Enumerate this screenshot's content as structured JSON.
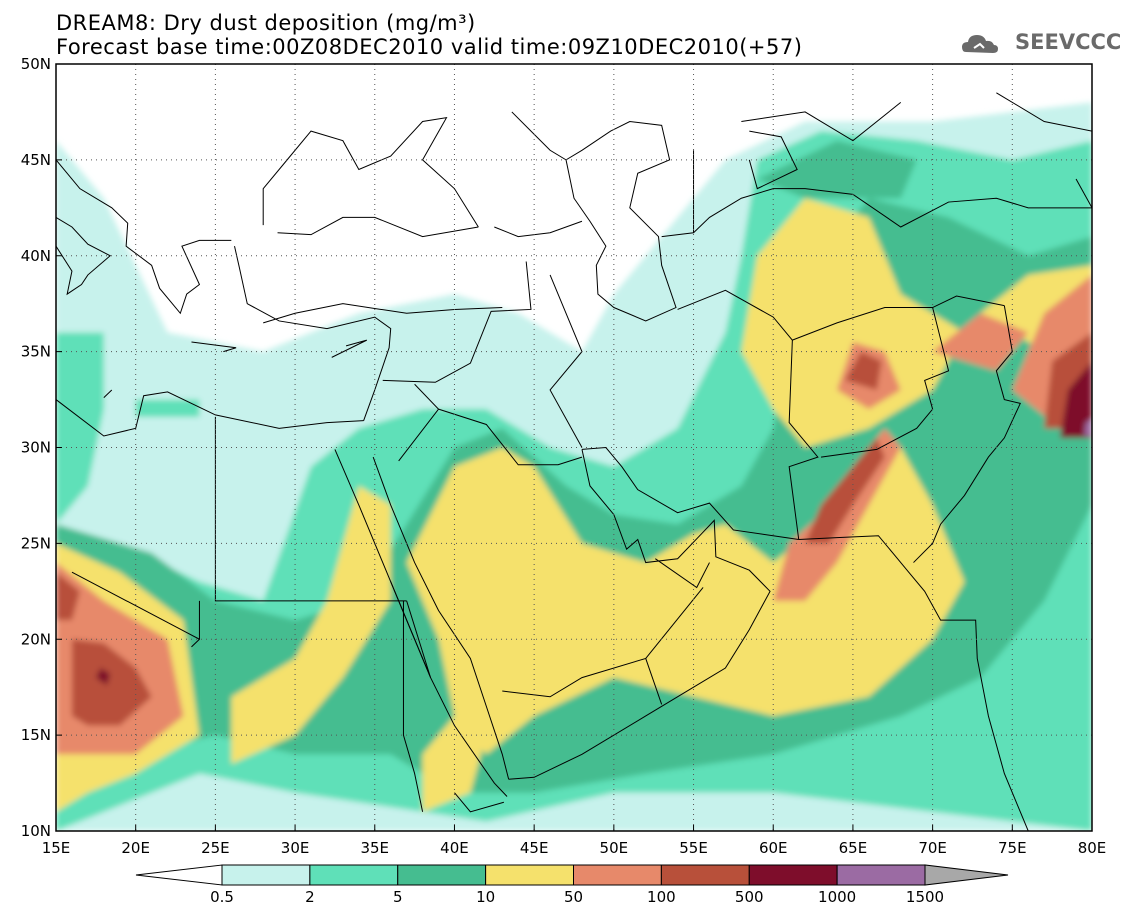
{
  "header": {
    "title_line1": "DREAM8: Dry dust deposition (mg/m³)",
    "title_line2": "Forecast base time:00Z08DEC2010 valid time:09Z10DEC2010(+57)",
    "logo_text": "SEEVCCC"
  },
  "map": {
    "lon_range": [
      15,
      80
    ],
    "lat_range": [
      10,
      50
    ],
    "lon_ticks": [
      "15E",
      "20E",
      "25E",
      "30E",
      "35E",
      "40E",
      "45E",
      "50E",
      "55E",
      "60E",
      "65E",
      "70E",
      "75E",
      "80E"
    ],
    "lat_ticks": [
      "10N",
      "15N",
      "20N",
      "25N",
      "30N",
      "35N",
      "40N",
      "45N",
      "50N"
    ],
    "gridlines": "dotted"
  },
  "legend": {
    "unit": "mg/m³",
    "bins": [
      {
        "label": "0.5",
        "color": "#c7f2ec"
      },
      {
        "label": "2",
        "color": "#5fe0b8"
      },
      {
        "label": "5",
        "color": "#45bd90"
      },
      {
        "label": "10",
        "color": "#f5e16c"
      },
      {
        "label": "50",
        "color": "#e7896a"
      },
      {
        "label": "100",
        "color": "#b8503a"
      },
      {
        "label": "500",
        "color": "#7e0d2b"
      },
      {
        "label": "1000",
        "color": "#9b6ba3"
      },
      {
        "label": "1500",
        "color": "#a8a8a8"
      }
    ],
    "tick_labels": [
      "0.5",
      "2",
      "5",
      "10",
      "50",
      "100",
      "500",
      "1000",
      "1500"
    ],
    "min_arrow_color": "#ffffff",
    "max_arrow_color": "#a8a8a8"
  },
  "colors": {
    "c0": "#c7f2ec",
    "c1": "#5fe0b8",
    "c2": "#45bd90",
    "c3": "#f5e16c",
    "c4": "#e7896a",
    "c5": "#b8503a",
    "c6": "#7e0d2b",
    "c7": "#9b6ba3"
  }
}
